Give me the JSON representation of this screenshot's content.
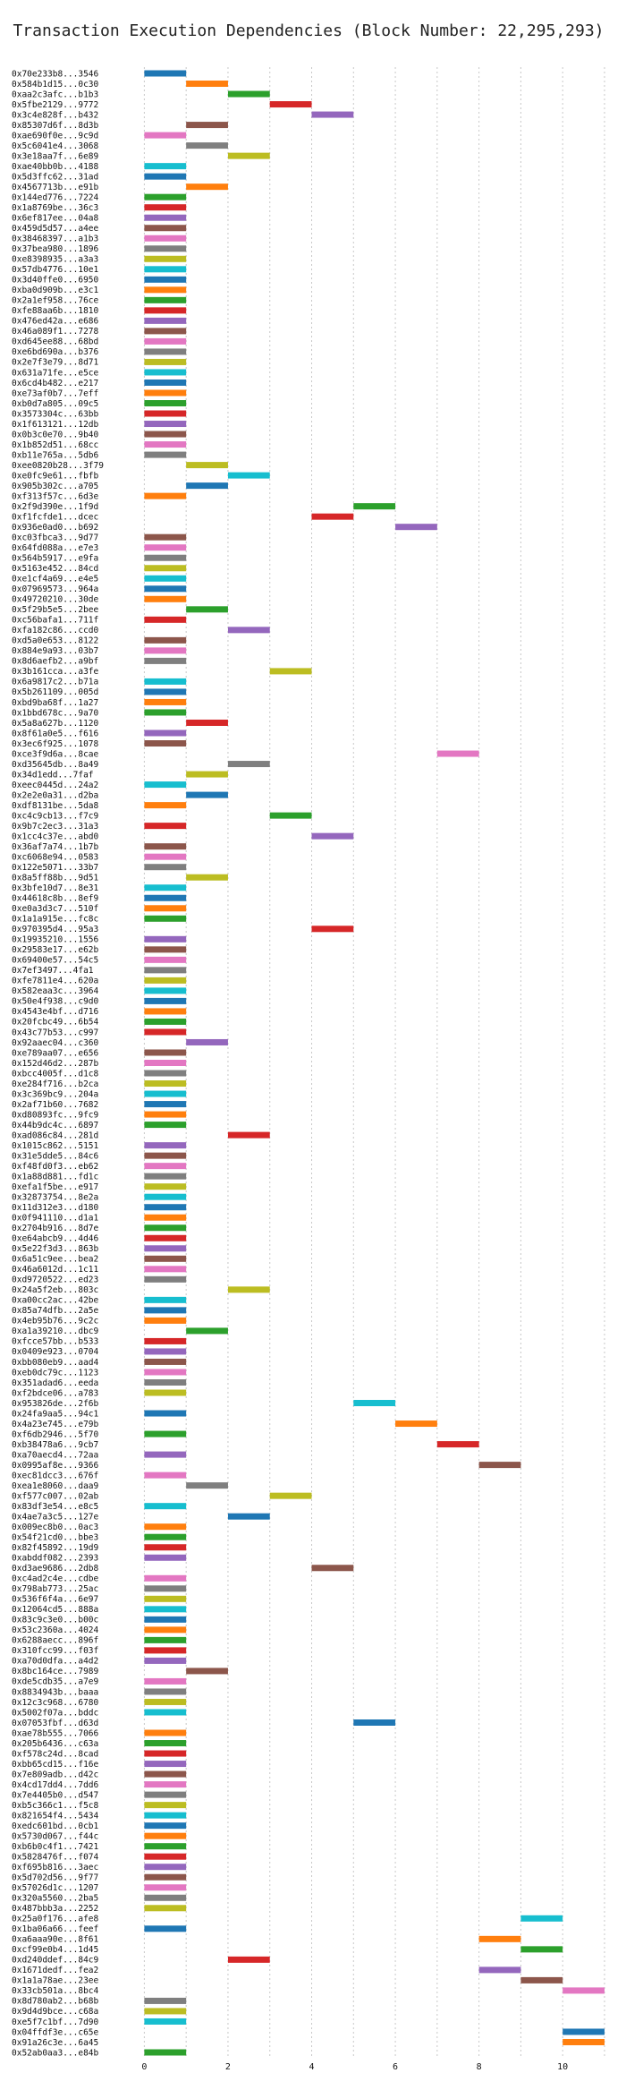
{
  "chart_data": {
    "type": "bar",
    "orientation": "horizontal-gantt",
    "title": "Transaction Execution Dependencies (Block Number: 22,295,293)",
    "xlabel": "",
    "ylabel": "",
    "xlim": [
      -0.5,
      11.3
    ],
    "x_ticks": [
      0,
      2,
      4,
      6,
      8,
      10
    ],
    "grid": true,
    "legend": "none",
    "palette": [
      "#1f77b4",
      "#ff7f0e",
      "#2ca02c",
      "#d62728",
      "#9467bd",
      "#8c564b",
      "#e377c2",
      "#7f7f7f",
      "#bcbd22",
      "#17becf"
    ],
    "tasks": [
      {
        "label": "0x70e233b8...3546",
        "start": 0,
        "color": 0
      },
      {
        "label": "0x584b1d15...0c30",
        "start": 1,
        "color": 1
      },
      {
        "label": "0xaa2c3afc...b1b3",
        "start": 2,
        "color": 2
      },
      {
        "label": "0x5fbe2129...9772",
        "start": 3,
        "color": 3
      },
      {
        "label": "0x3c4e828f...b432",
        "start": 4,
        "color": 4
      },
      {
        "label": "0x85307d6f...8d3b",
        "start": 1,
        "color": 5
      },
      {
        "label": "0xae690f0e...9c9d",
        "start": 0,
        "color": 6
      },
      {
        "label": "0x5c6041e4...3068",
        "start": 1,
        "color": 7
      },
      {
        "label": "0x3e18aa7f...6e89",
        "start": 2,
        "color": 8
      },
      {
        "label": "0xae40bb0b...4188",
        "start": 0,
        "color": 9
      },
      {
        "label": "0x5d3ffc62...31ad",
        "start": 0,
        "color": 0
      },
      {
        "label": "0x4567713b...e91b",
        "start": 1,
        "color": 1
      },
      {
        "label": "0x144ed776...7224",
        "start": 0,
        "color": 2
      },
      {
        "label": "0x1a8769be...36c3",
        "start": 0,
        "color": 3
      },
      {
        "label": "0x6ef817ee...04a8",
        "start": 0,
        "color": 4
      },
      {
        "label": "0x459d5d57...a4ee",
        "start": 0,
        "color": 5
      },
      {
        "label": "0x38468397...a1b3",
        "start": 0,
        "color": 6
      },
      {
        "label": "0x37bea980...1896",
        "start": 0,
        "color": 7
      },
      {
        "label": "0xe8398935...a3a3",
        "start": 0,
        "color": 8
      },
      {
        "label": "0x57db4776...10e1",
        "start": 0,
        "color": 9
      },
      {
        "label": "0x3d40ffe0...6950",
        "start": 0,
        "color": 0
      },
      {
        "label": "0xba0d909b...e3c1",
        "start": 0,
        "color": 1
      },
      {
        "label": "0x2a1ef958...76ce",
        "start": 0,
        "color": 2
      },
      {
        "label": "0xfe88aa6b...1810",
        "start": 0,
        "color": 3
      },
      {
        "label": "0x476ed42a...e686",
        "start": 0,
        "color": 4
      },
      {
        "label": "0x46a089f1...7278",
        "start": 0,
        "color": 5
      },
      {
        "label": "0xd645ee88...68bd",
        "start": 0,
        "color": 6
      },
      {
        "label": "0xe6bd690a...b376",
        "start": 0,
        "color": 7
      },
      {
        "label": "0x2e7f3e79...8d71",
        "start": 0,
        "color": 8
      },
      {
        "label": "0x631a71fe...e5ce",
        "start": 0,
        "color": 9
      },
      {
        "label": "0x6cd4b482...e217",
        "start": 0,
        "color": 0
      },
      {
        "label": "0xe73af0b7...7eff",
        "start": 0,
        "color": 1
      },
      {
        "label": "0xb0d7a805...09c5",
        "start": 0,
        "color": 2
      },
      {
        "label": "0x3573304c...63bb",
        "start": 0,
        "color": 3
      },
      {
        "label": "0x1f613121...12db",
        "start": 0,
        "color": 4
      },
      {
        "label": "0x0b3c0e70...9b40",
        "start": 0,
        "color": 5
      },
      {
        "label": "0x1b852d51...68cc",
        "start": 0,
        "color": 6
      },
      {
        "label": "0xb11e765a...5db6",
        "start": 0,
        "color": 7
      },
      {
        "label": "0xee0820b28...3f79",
        "start": 1,
        "color": 8
      },
      {
        "label": "0xe0fc9e61...fbfb",
        "start": 2,
        "color": 9
      },
      {
        "label": "0x905b302c...a705",
        "start": 1,
        "color": 0
      },
      {
        "label": "0xf313f57c...6d3e",
        "start": 0,
        "color": 1
      },
      {
        "label": "0x2f9d390e...1f9d",
        "start": 5,
        "color": 2
      },
      {
        "label": "0xf1fcfde1...dcec",
        "start": 4,
        "color": 3
      },
      {
        "label": "0x936e0ad0...b692",
        "start": 6,
        "color": 4
      },
      {
        "label": "0xc03fbca3...9d77",
        "start": 0,
        "color": 5
      },
      {
        "label": "0x64fd088a...e7e3",
        "start": 0,
        "color": 6
      },
      {
        "label": "0x564b5917...e9fa",
        "start": 0,
        "color": 7
      },
      {
        "label": "0x5163e452...84cd",
        "start": 0,
        "color": 8
      },
      {
        "label": "0xe1cf4a69...e4e5",
        "start": 0,
        "color": 9
      },
      {
        "label": "0x07969573...964a",
        "start": 0,
        "color": 0
      },
      {
        "label": "0x49720210...30de",
        "start": 0,
        "color": 1
      },
      {
        "label": "0x5f29b5e5...2bee",
        "start": 1,
        "color": 2
      },
      {
        "label": "0xc56bafa1...711f",
        "start": 0,
        "color": 3
      },
      {
        "label": "0xfa182c86...ccd0",
        "start": 2,
        "color": 4
      },
      {
        "label": "0xd5a0e653...8122",
        "start": 0,
        "color": 5
      },
      {
        "label": "0x884e9a93...03b7",
        "start": 0,
        "color": 6
      },
      {
        "label": "0x8d6aefb2...a9bf",
        "start": 0,
        "color": 7
      },
      {
        "label": "0x3b161cca...a3fe",
        "start": 3,
        "color": 8
      },
      {
        "label": "0x6a9817c2...b71a",
        "start": 0,
        "color": 9
      },
      {
        "label": "0x5b261109...005d",
        "start": 0,
        "color": 0
      },
      {
        "label": "0xbd9ba68f...1a27",
        "start": 0,
        "color": 1
      },
      {
        "label": "0x1bbd678c...9a70",
        "start": 0,
        "color": 2
      },
      {
        "label": "0x5a8a627b...1120",
        "start": 1,
        "color": 3
      },
      {
        "label": "0x8f61a0e5...f616",
        "start": 0,
        "color": 4
      },
      {
        "label": "0x3ec6f925...1078",
        "start": 0,
        "color": 5
      },
      {
        "label": "0xce3f9d6a...8cae",
        "start": 7,
        "color": 6
      },
      {
        "label": "0xd35645db...8a49",
        "start": 2,
        "color": 7
      },
      {
        "label": "0x34d1edd...7faf",
        "start": 1,
        "color": 8
      },
      {
        "label": "0xeec0445d...24a2",
        "start": 0,
        "color": 9
      },
      {
        "label": "0x2e2e0a31...d2ba",
        "start": 1,
        "color": 0
      },
      {
        "label": "0xdf8131be...5da8",
        "start": 0,
        "color": 1
      },
      {
        "label": "0xc4c9cb13...f7c9",
        "start": 3,
        "color": 2
      },
      {
        "label": "0x9b7c2ec3...31a3",
        "start": 0,
        "color": 3
      },
      {
        "label": "0x1cc4c37e...abd0",
        "start": 4,
        "color": 4
      },
      {
        "label": "0x36af7a74...1b7b",
        "start": 0,
        "color": 5
      },
      {
        "label": "0xc6068e94...0583",
        "start": 0,
        "color": 6
      },
      {
        "label": "0x122e5071...33b7",
        "start": 0,
        "color": 7
      },
      {
        "label": "0x8a5ff88b...9d51",
        "start": 1,
        "color": 8
      },
      {
        "label": "0x3bfe10d7...8e31",
        "start": 0,
        "color": 9
      },
      {
        "label": "0x44618c8b...8ef9",
        "start": 0,
        "color": 0
      },
      {
        "label": "0xe0a3d3c7...510f",
        "start": 0,
        "color": 1
      },
      {
        "label": "0x1a1a915e...fc8c",
        "start": 0,
        "color": 2
      },
      {
        "label": "0x970395d4...95a3",
        "start": 4,
        "color": 3
      },
      {
        "label": "0x19935210...1556",
        "start": 0,
        "color": 4
      },
      {
        "label": "0x29583e17...e62b",
        "start": 0,
        "color": 5
      },
      {
        "label": "0x69400e57...54c5",
        "start": 0,
        "color": 6
      },
      {
        "label": "0x7ef3497...4fa1",
        "start": 0,
        "color": 7
      },
      {
        "label": "0xfe7811e4...620a",
        "start": 0,
        "color": 8
      },
      {
        "label": "0x582eaa3c...3964",
        "start": 0,
        "color": 9
      },
      {
        "label": "0x50e4f938...c9d0",
        "start": 0,
        "color": 0
      },
      {
        "label": "0x4543e4bf...d716",
        "start": 0,
        "color": 1
      },
      {
        "label": "0x20fcbc49...6b54",
        "start": 0,
        "color": 2
      },
      {
        "label": "0x43c77b53...c997",
        "start": 0,
        "color": 3
      },
      {
        "label": "0x92aaec04...c360",
        "start": 1,
        "color": 4
      },
      {
        "label": "0xe789aa07...e656",
        "start": 0,
        "color": 5
      },
      {
        "label": "0x152d46d2...287b",
        "start": 0,
        "color": 6
      },
      {
        "label": "0xbcc4005f...d1c8",
        "start": 0,
        "color": 7
      },
      {
        "label": "0xe284f716...b2ca",
        "start": 0,
        "color": 8
      },
      {
        "label": "0x3c369bc9...204a",
        "start": 0,
        "color": 9
      },
      {
        "label": "0x2af71b60...7682",
        "start": 0,
        "color": 0
      },
      {
        "label": "0xd80893fc...9fc9",
        "start": 0,
        "color": 1
      },
      {
        "label": "0x44b9dc4c...6897",
        "start": 0,
        "color": 2
      },
      {
        "label": "0xad086c84...281d",
        "start": 2,
        "color": 3
      },
      {
        "label": "0x1015c862...5151",
        "start": 0,
        "color": 4
      },
      {
        "label": "0x31e5dde5...84c6",
        "start": 0,
        "color": 5
      },
      {
        "label": "0xf48fd0f3...eb62",
        "start": 0,
        "color": 6
      },
      {
        "label": "0x1a88d881...fd1c",
        "start": 0,
        "color": 7
      },
      {
        "label": "0xefa1f5be...e917",
        "start": 0,
        "color": 8
      },
      {
        "label": "0x32873754...8e2a",
        "start": 0,
        "color": 9
      },
      {
        "label": "0x11d312e3...d180",
        "start": 0,
        "color": 0
      },
      {
        "label": "0x0f941110...d1a1",
        "start": 0,
        "color": 1
      },
      {
        "label": "0x2704b916...8d7e",
        "start": 0,
        "color": 2
      },
      {
        "label": "0xe64abcb9...4d46",
        "start": 0,
        "color": 3
      },
      {
        "label": "0x5e22f3d3...863b",
        "start": 0,
        "color": 4
      },
      {
        "label": "0x6a51c9ee...bea2",
        "start": 0,
        "color": 5
      },
      {
        "label": "0x46a6012d...1c11",
        "start": 0,
        "color": 6
      },
      {
        "label": "0xd9720522...ed23",
        "start": 0,
        "color": 7
      },
      {
        "label": "0x24a5f2eb...803c",
        "start": 2,
        "color": 8
      },
      {
        "label": "0xa00cc2ac...42be",
        "start": 0,
        "color": 9
      },
      {
        "label": "0x85a74dfb...2a5e",
        "start": 0,
        "color": 0
      },
      {
        "label": "0x4eb95b76...9c2c",
        "start": 0,
        "color": 1
      },
      {
        "label": "0xa1a39210...dbc9",
        "start": 1,
        "color": 2
      },
      {
        "label": "0xfcce57bb...b533",
        "start": 0,
        "color": 3
      },
      {
        "label": "0x0409e923...0704",
        "start": 0,
        "color": 4
      },
      {
        "label": "0xbb080eb9...aad4",
        "start": 0,
        "color": 5
      },
      {
        "label": "0xeb0dc79c...1123",
        "start": 0,
        "color": 6
      },
      {
        "label": "0x351adad6...eeda",
        "start": 0,
        "color": 7
      },
      {
        "label": "0xf2bdce06...a783",
        "start": 0,
        "color": 8
      },
      {
        "label": "0x953826de...2f6b",
        "start": 5,
        "color": 9
      },
      {
        "label": "0x24fa9aa5...94c1",
        "start": 0,
        "color": 0
      },
      {
        "label": "0x4a23e745...e79b",
        "start": 6,
        "color": 1
      },
      {
        "label": "0xf6db2946...5f70",
        "start": 0,
        "color": 2
      },
      {
        "label": "0xb38478a6...9cb7",
        "start": 7,
        "color": 3
      },
      {
        "label": "0xa70aecd4...72aa",
        "start": 0,
        "color": 4
      },
      {
        "label": "0x0995af8e...9366",
        "start": 8,
        "color": 5
      },
      {
        "label": "0xec81dcc3...676f",
        "start": 0,
        "color": 6
      },
      {
        "label": "0xea1e8060...daa9",
        "start": 1,
        "color": 7
      },
      {
        "label": "0xf577c007...02ab",
        "start": 3,
        "color": 8
      },
      {
        "label": "0x83df3e54...e8c5",
        "start": 0,
        "color": 9
      },
      {
        "label": "0x4ae7a3c5...127e",
        "start": 2,
        "color": 0
      },
      {
        "label": "0x009ec8b0...0ac3",
        "start": 0,
        "color": 1
      },
      {
        "label": "0x54f21cd0...bbe3",
        "start": 0,
        "color": 2
      },
      {
        "label": "0x82f45892...19d9",
        "start": 0,
        "color": 3
      },
      {
        "label": "0xabddf082...2393",
        "start": 0,
        "color": 4
      },
      {
        "label": "0xd3ae9686...2db8",
        "start": 4,
        "color": 5
      },
      {
        "label": "0xc4ad2c4e...cdbe",
        "start": 0,
        "color": 6
      },
      {
        "label": "0x798ab773...25ac",
        "start": 0,
        "color": 7
      },
      {
        "label": "0x536f6f4a...6e97",
        "start": 0,
        "color": 8
      },
      {
        "label": "0x12064cd5...888a",
        "start": 0,
        "color": 9
      },
      {
        "label": "0x83c9c3e0...b00c",
        "start": 0,
        "color": 0
      },
      {
        "label": "0x53c2360a...4024",
        "start": 0,
        "color": 1
      },
      {
        "label": "0x6288aecc...896f",
        "start": 0,
        "color": 2
      },
      {
        "label": "0x310fcc99...f03f",
        "start": 0,
        "color": 3
      },
      {
        "label": "0xa70d0dfa...a4d2",
        "start": 0,
        "color": 4
      },
      {
        "label": "0x8bc164ce...7989",
        "start": 1,
        "color": 5
      },
      {
        "label": "0xde5cdb35...a7e9",
        "start": 0,
        "color": 6
      },
      {
        "label": "0x8834943b...baaa",
        "start": 0,
        "color": 7
      },
      {
        "label": "0x12c3c968...6780",
        "start": 0,
        "color": 8
      },
      {
        "label": "0x5002f07a...bddc",
        "start": 0,
        "color": 9
      },
      {
        "label": "0x07053fbf...d63d",
        "start": 5,
        "color": 0
      },
      {
        "label": "0xae78b555...7066",
        "start": 0,
        "color": 1
      },
      {
        "label": "0x205b6436...c63a",
        "start": 0,
        "color": 2
      },
      {
        "label": "0xf578c24d...8cad",
        "start": 0,
        "color": 3
      },
      {
        "label": "0xbb65cd15...f16e",
        "start": 0,
        "color": 4
      },
      {
        "label": "0x7e809adb...d42c",
        "start": 0,
        "color": 5
      },
      {
        "label": "0x4cd17dd4...7dd6",
        "start": 0,
        "color": 6
      },
      {
        "label": "0x7e4405b0...d547",
        "start": 0,
        "color": 7
      },
      {
        "label": "0xb5c366c1...f5c8",
        "start": 0,
        "color": 8
      },
      {
        "label": "0x821654f4...5434",
        "start": 0,
        "color": 9
      },
      {
        "label": "0xedc601bd...0cb1",
        "start": 0,
        "color": 0
      },
      {
        "label": "0x5730d067...f44c",
        "start": 0,
        "color": 1
      },
      {
        "label": "0xb6b0c4f1...7421",
        "start": 0,
        "color": 2
      },
      {
        "label": "0x5828476f...f074",
        "start": 0,
        "color": 3
      },
      {
        "label": "0xf695b816...3aec",
        "start": 0,
        "color": 4
      },
      {
        "label": "0x5d702d56...9f77",
        "start": 0,
        "color": 5
      },
      {
        "label": "0x57026d1c...1207",
        "start": 0,
        "color": 6
      },
      {
        "label": "0x320a5560...2ba5",
        "start": 0,
        "color": 7
      },
      {
        "label": "0x487bbb3a...2252",
        "start": 0,
        "color": 8
      },
      {
        "label": "0x25a0f176...afe8",
        "start": 9,
        "color": 9
      },
      {
        "label": "0x1ba06a66...feef",
        "start": 0,
        "color": 0
      },
      {
        "label": "0xa6aaa90e...8f61",
        "start": 8,
        "color": 1
      },
      {
        "label": "0xcf99e0b4...1d45",
        "start": 9,
        "color": 2
      },
      {
        "label": "0xd240ddef...84c9",
        "start": 2,
        "color": 3
      },
      {
        "label": "0x1671dedf...fea2",
        "start": 8,
        "color": 4
      },
      {
        "label": "0x1a1a78ae...23ee",
        "start": 9,
        "color": 5
      },
      {
        "label": "0x33cb501a...8bc4",
        "start": 10,
        "color": 6
      },
      {
        "label": "0x8d780ab2...b68b",
        "start": 0,
        "color": 7
      },
      {
        "label": "0x9d4d9bce...c68a",
        "start": 0,
        "color": 8
      },
      {
        "label": "0xe5f7c1bf...7d90",
        "start": 0,
        "color": 9
      },
      {
        "label": "0x04ffdf3e...c65e",
        "start": 10,
        "color": 0
      },
      {
        "label": "0x91a26c3e...6a45",
        "start": 10,
        "color": 1
      },
      {
        "label": "0x52ab0aa3...e84b",
        "start": 0,
        "color": 2
      }
    ]
  }
}
